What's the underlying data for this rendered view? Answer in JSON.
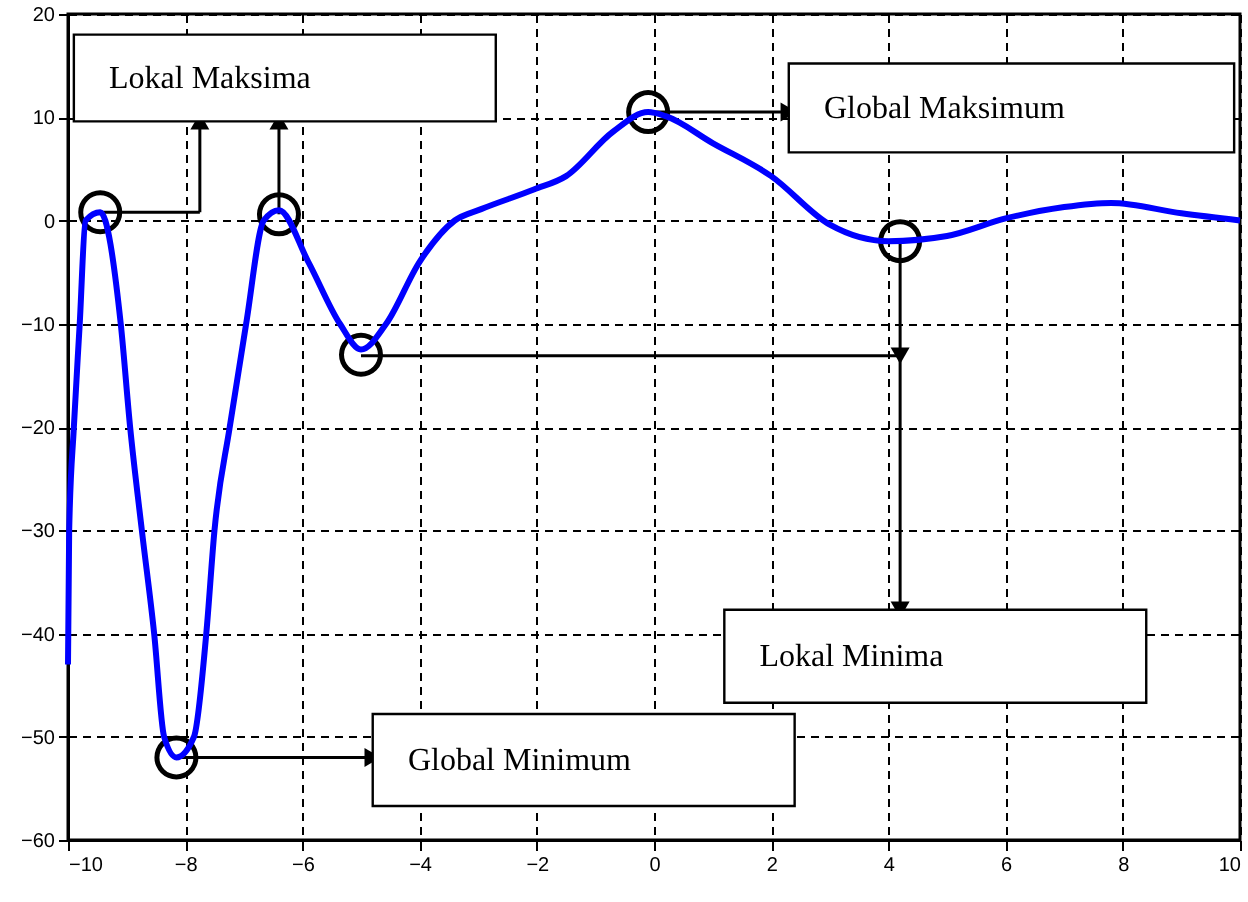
{
  "chart_data": {
    "type": "line",
    "x": [
      -10,
      -9.98,
      -9.9,
      -9.8,
      -9.7,
      -9.45,
      -9.1,
      -8.94,
      -8.74,
      -8.53,
      -8.36,
      -8.15,
      -7.85,
      -7.64,
      -7.5,
      -7.24,
      -6.96,
      -6.66,
      -6.4,
      -5.9,
      -5.36,
      -5.0,
      -4.57,
      -4.0,
      -3.4,
      -2.95,
      -2.05,
      -1.5,
      -0.7,
      -0.1,
      0.2,
      1,
      2,
      3,
      4,
      5,
      6,
      7,
      7.8,
      9,
      10
    ],
    "series": [
      {
        "color": "#0000ff",
        "values": [
          -43,
          -30,
          -20,
          -10,
          0,
          0.8,
          -10,
          -20,
          -30,
          -40,
          -50,
          -52,
          -50,
          -40,
          -30,
          -20,
          -10,
          0,
          1,
          -4,
          -10,
          -12.5,
          -10,
          -4,
          0,
          1.1,
          3,
          4.3,
          8.6,
          10.5,
          10.1,
          7.5,
          4.3,
          -0.4,
          -2,
          -1.5,
          0.2,
          1.3,
          1.7,
          0.7,
          0
        ]
      }
    ],
    "xlim": [
      -10,
      10
    ],
    "xticks": [
      -10,
      -8,
      -6,
      -4,
      -2,
      0,
      2,
      4,
      6,
      8,
      10
    ],
    "ylim": [
      -60,
      20
    ],
    "yticks": [
      -60,
      -50,
      -40,
      -30,
      -20,
      -10,
      0,
      10,
      20
    ],
    "grid": true,
    "annotations": [
      {
        "text": "Lokal Maksima",
        "x": -6.4,
        "y": 0.6
      },
      {
        "text": "Global Maksimum",
        "x": -0.1,
        "y": 10.5
      },
      {
        "text": "Lokal Minima",
        "x": 4.2,
        "y": -2
      },
      {
        "text": "Global Minimum",
        "x": -8.15,
        "y": -52
      }
    ]
  }
}
